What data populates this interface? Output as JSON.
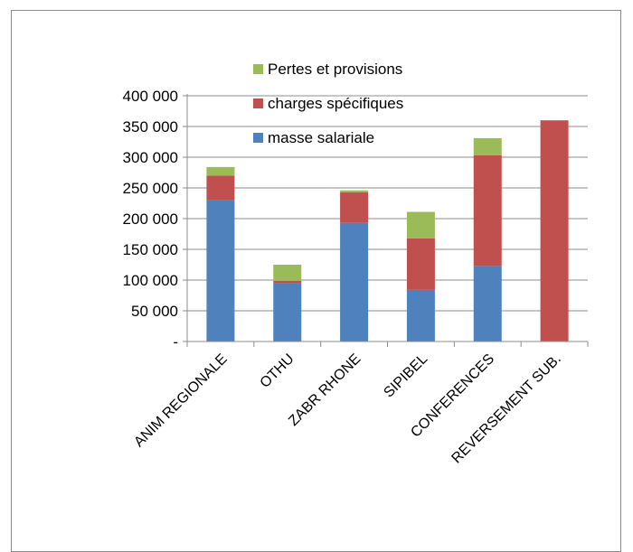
{
  "chart_data": {
    "type": "bar",
    "stacked": true,
    "categories": [
      "ANIM REGIONALE",
      "OTHU",
      "ZABR RHONE",
      "SIPIBEL",
      "CONFERENCES",
      "REVERSEMENT SUB."
    ],
    "series": [
      {
        "name": "masse salariale",
        "color": "#4F81BD",
        "values": [
          230000,
          95000,
          193000,
          84000,
          123000,
          0
        ]
      },
      {
        "name": "charges spécifiques",
        "color": "#C0504D",
        "values": [
          40000,
          4000,
          50000,
          84000,
          180000,
          360000
        ]
      },
      {
        "name": "Pertes et provisions",
        "color": "#9BBB59",
        "values": [
          14000,
          26000,
          3000,
          43000,
          28000,
          0
        ]
      }
    ],
    "ylim": [
      0,
      400000
    ],
    "yticks": [
      {
        "value": 0,
        "label": "-"
      },
      {
        "value": 50000,
        "label": "50 000"
      },
      {
        "value": 100000,
        "label": "100 000"
      },
      {
        "value": 150000,
        "label": "150 000"
      },
      {
        "value": 200000,
        "label": "200 000"
      },
      {
        "value": 250000,
        "label": "250 000"
      },
      {
        "value": 300000,
        "label": "300 000"
      },
      {
        "value": 350000,
        "label": "350 000"
      },
      {
        "value": 400000,
        "label": "400 000"
      }
    ],
    "grid": true,
    "legend_position": "top-inside",
    "legend_order": [
      "Pertes et provisions",
      "charges spécifiques",
      "masse salariale"
    ]
  }
}
